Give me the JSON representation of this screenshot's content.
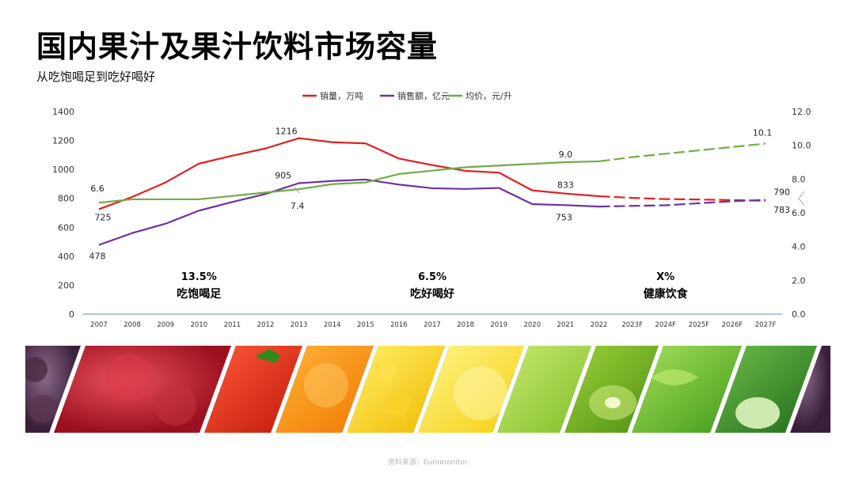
{
  "header": {
    "title": "国内果汁及果汁饮料市场容量",
    "subtitle": "从吃饱喝足到吃好喝好"
  },
  "chart_data": {
    "type": "line",
    "categories": [
      "2007",
      "2008",
      "2009",
      "2010",
      "2011",
      "2012",
      "2013",
      "2014",
      "2015",
      "2016",
      "2017",
      "2018",
      "2019",
      "2020",
      "2021",
      "2022",
      "2023F",
      "2024F",
      "2025F",
      "2026F",
      "2027F"
    ],
    "series": [
      {
        "name": "销量，万吨",
        "axis": "left",
        "color": "#e02020",
        "values": [
          725,
          810,
          910,
          1040,
          1095,
          1145,
          1216,
          1188,
          1180,
          1075,
          1030,
          990,
          978,
          855,
          833,
          815,
          803,
          795,
          792,
          788,
          783
        ]
      },
      {
        "name": "销售额，亿元",
        "axis": "left",
        "color": "#7030a0",
        "values": [
          478,
          560,
          625,
          715,
          775,
          830,
          905,
          920,
          930,
          895,
          870,
          865,
          872,
          760,
          753,
          743,
          748,
          752,
          766,
          780,
          790
        ]
      },
      {
        "name": "均价，元/升",
        "axis": "right",
        "color": "#70ad47",
        "values": [
          6.6,
          6.8,
          6.8,
          6.8,
          7.0,
          7.2,
          7.4,
          7.7,
          7.8,
          8.3,
          8.5,
          8.7,
          8.8,
          8.9,
          9.0,
          9.05,
          9.3,
          9.5,
          9.7,
          9.9,
          10.1
        ]
      }
    ],
    "forecast_from_index": 15,
    "y_left": {
      "min": 0,
      "max": 1400,
      "step": 200,
      "ticks": [
        "0",
        "200",
        "400",
        "600",
        "800",
        "1000",
        "1200",
        "1400"
      ]
    },
    "y_right": {
      "min": 0,
      "max": 12,
      "step": 2,
      "ticks": [
        "0.0",
        "2.0",
        "4.0",
        "6.0",
        "8.0",
        "10.0",
        "12.0"
      ]
    },
    "data_labels": [
      {
        "series": 0,
        "index": 0,
        "text": "725"
      },
      {
        "series": 0,
        "index": 6,
        "text": "1216"
      },
      {
        "series": 0,
        "index": 14,
        "text": "833"
      },
      {
        "series": 0,
        "index": 20,
        "text": "783"
      },
      {
        "series": 1,
        "index": 0,
        "text": "478"
      },
      {
        "series": 1,
        "index": 6,
        "text": "905"
      },
      {
        "series": 1,
        "index": 14,
        "text": "753"
      },
      {
        "series": 1,
        "index": 20,
        "text": "790"
      },
      {
        "series": 2,
        "index": 0,
        "text": "6.6"
      },
      {
        "series": 2,
        "index": 6,
        "text": "7.4"
      },
      {
        "series": 2,
        "index": 14,
        "text": "9.0"
      },
      {
        "series": 2,
        "index": 20,
        "text": "10.1"
      }
    ],
    "annotations": [
      {
        "value": "13.5%",
        "label": "吃饱喝足",
        "at_category": 3
      },
      {
        "value": "6.5%",
        "label": "吃好喝好",
        "at_category": 10
      },
      {
        "value": "X%",
        "label": "健康饮食",
        "at_category": 17
      }
    ],
    "legend_position": "top-center"
  },
  "footer": {
    "source": "资料来源：Euromonitor"
  },
  "colors": {
    "axis_line": "#8aa3c8",
    "tick_text": "#333333",
    "leader_line": "#a6a6a6"
  },
  "image": {
    "description_icon": "fruit-strip-image"
  }
}
